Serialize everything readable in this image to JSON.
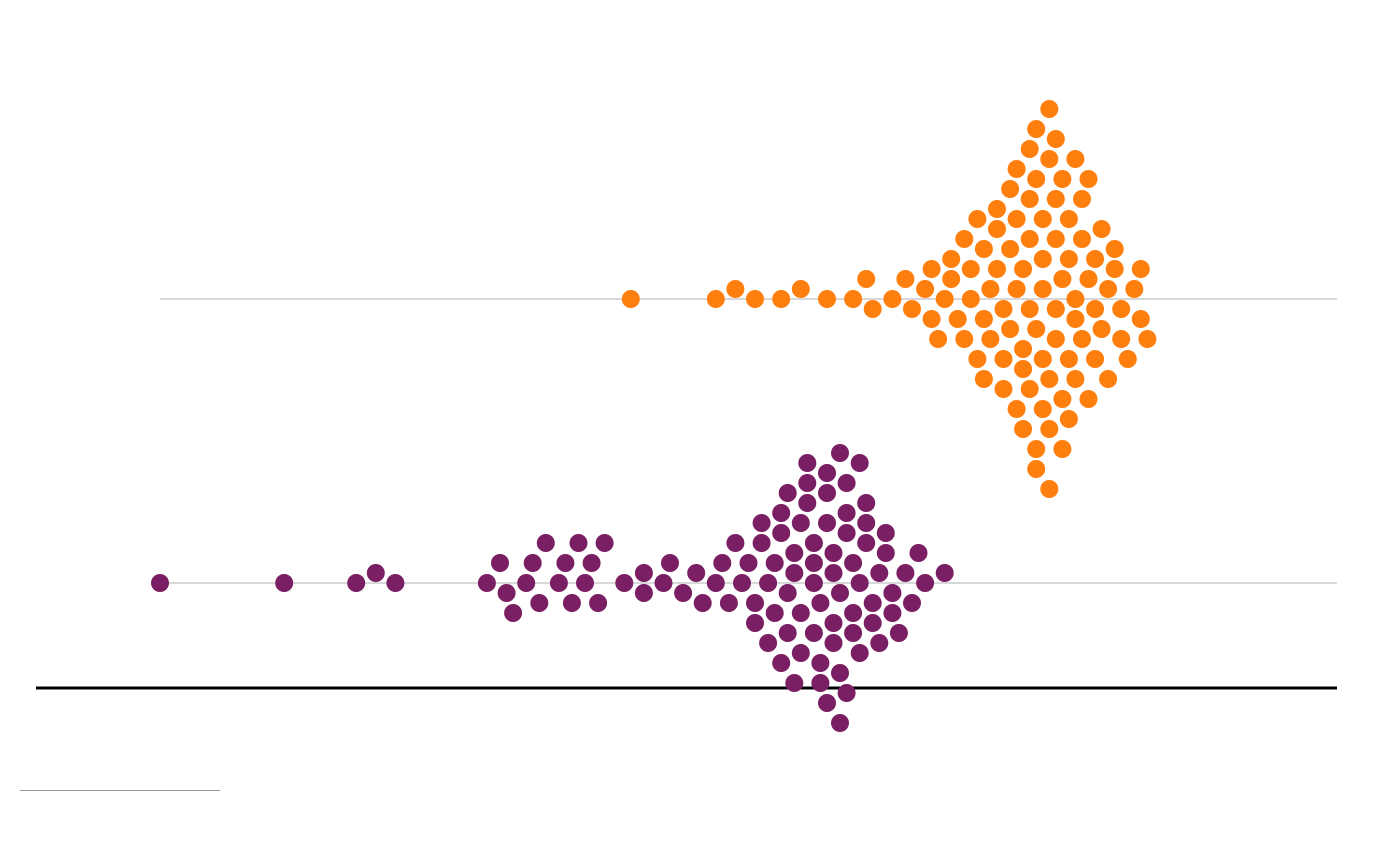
{
  "chart_data": {
    "type": "beeswarm",
    "title": "",
    "xlabel": "",
    "ylabel": "",
    "x_ticks": [],
    "grid": false,
    "legend": "none",
    "series": [
      {
        "color": "#ff7f0e",
        "values": [
          39.2,
          40.5,
          40.8,
          41.1,
          41.5,
          41.8,
          42.2,
          42.6,
          42.8,
          42.9,
          43.2,
          43.4,
          43.5,
          43.7,
          43.8,
          43.8,
          43.9,
          44.0,
          44.1,
          44.1,
          44.2,
          44.3,
          44.3,
          44.4,
          44.4,
          44.5,
          44.5,
          44.6,
          44.6,
          44.6,
          44.7,
          44.7,
          44.8,
          44.8,
          44.8,
          44.9,
          44.9,
          44.9,
          45.0,
          45.0,
          45.0,
          45.1,
          45.1,
          45.1,
          45.1,
          45.2,
          45.2,
          45.2,
          45.2,
          45.3,
          45.3,
          45.3,
          45.3,
          45.3,
          45.4,
          45.4,
          45.4,
          45.4,
          45.4,
          45.5,
          45.5,
          45.5,
          45.5,
          45.5,
          45.6,
          45.6,
          45.6,
          45.6,
          45.6,
          45.7,
          45.7,
          45.7,
          45.7,
          45.7,
          45.8,
          45.8,
          45.8,
          45.8,
          45.9,
          45.9,
          45.9,
          45.9,
          46.0,
          46.0,
          46.0,
          46.0,
          46.1,
          46.1,
          46.1,
          46.2,
          46.2,
          46.2,
          46.3,
          46.3,
          46.3,
          46.4,
          46.4,
          46.5,
          46.5,
          46.6,
          46.6,
          46.7,
          46.7,
          46.8,
          46.9,
          47.0,
          47.0,
          47.1
        ]
      },
      {
        "color": "#7a1f63",
        "values": [
          32.0,
          33.9,
          35.0,
          35.3,
          35.6,
          37.0,
          37.2,
          37.3,
          37.4,
          37.6,
          37.7,
          37.8,
          37.9,
          38.1,
          38.2,
          38.3,
          38.4,
          38.5,
          38.6,
          38.7,
          38.8,
          39.1,
          39.4,
          39.4,
          39.7,
          39.8,
          40.0,
          40.2,
          40.3,
          40.5,
          40.6,
          40.7,
          40.8,
          40.9,
          41.0,
          41.1,
          41.1,
          41.2,
          41.2,
          41.3,
          41.3,
          41.4,
          41.4,
          41.5,
          41.5,
          41.5,
          41.6,
          41.6,
          41.6,
          41.7,
          41.7,
          41.7,
          41.8,
          41.8,
          41.8,
          41.9,
          41.9,
          41.9,
          42.0,
          42.0,
          42.0,
          42.0,
          42.1,
          42.1,
          42.1,
          42.2,
          42.2,
          42.2,
          42.2,
          42.3,
          42.3,
          42.3,
          42.3,
          42.4,
          42.4,
          42.4,
          42.4,
          42.5,
          42.5,
          42.5,
          42.5,
          42.6,
          42.6,
          42.6,
          42.7,
          42.7,
          42.7,
          42.8,
          42.8,
          42.8,
          42.9,
          42.9,
          43.0,
          43.0,
          43.1,
          43.1,
          43.2,
          43.2,
          43.3,
          43.4,
          43.5,
          43.6,
          43.7,
          44.0
        ]
      }
    ],
    "xlim": [
      32.0,
      50.0
    ],
    "baseline_color": "#000000",
    "track_color": "#cccccc"
  },
  "source": {
    "rule_color": "#999999"
  }
}
